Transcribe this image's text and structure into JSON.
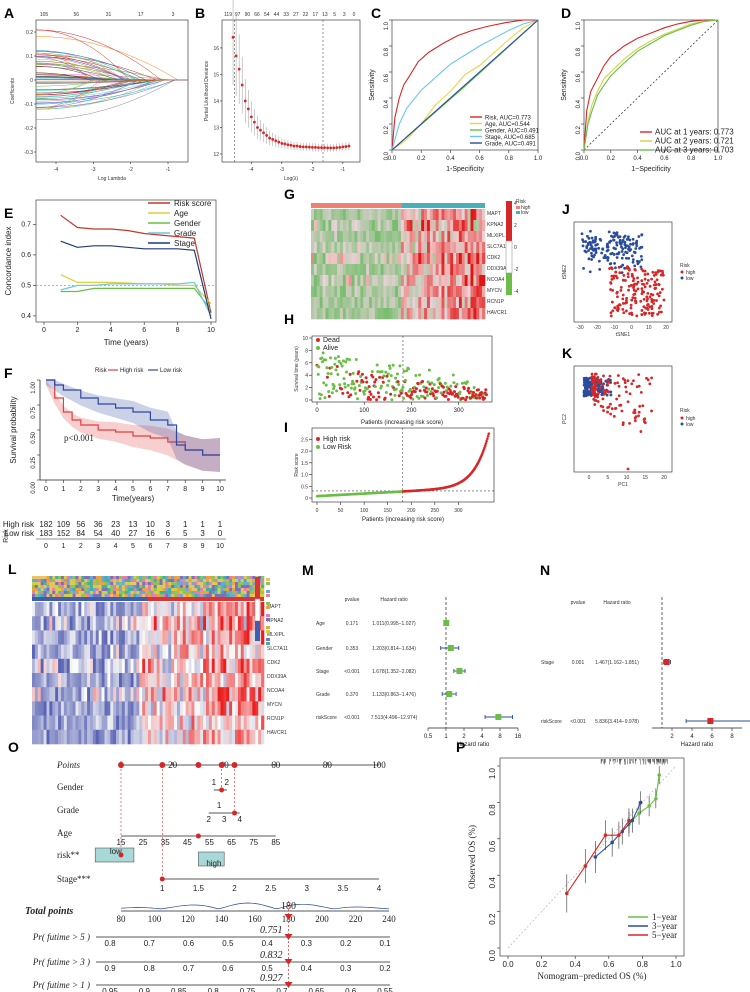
{
  "panel_labels": [
    "A",
    "B",
    "C",
    "D",
    "E",
    "F",
    "G",
    "H",
    "I",
    "J",
    "K",
    "L",
    "M",
    "N",
    "O",
    "P"
  ],
  "colors": {
    "red": "#d62728",
    "blue": "#2a4d9b",
    "green": "#6abe45",
    "yellow": "#e8e84a",
    "cyan": "#6cc6e6",
    "teal": "#1f7a8c",
    "pink": "#f0b8a8"
  },
  "chart_data": [
    {
      "panel": "A",
      "type": "line",
      "title": "",
      "top_ticks": [
        "105",
        "56",
        "31",
        "17",
        "3"
      ],
      "x_ticks": [
        "-4",
        "-3",
        "-2",
        "-1"
      ],
      "xlabel": "Log Lambda",
      "ylabel": "Coefficients",
      "y_ticks": [
        "0.2",
        "0.1",
        "0",
        "-0.1",
        "-0.2",
        "-0.3"
      ]
    },
    {
      "panel": "B",
      "type": "scatter",
      "top_ticks": [
        "119",
        "97",
        "90",
        "66",
        "54",
        "44",
        "33",
        "27",
        "22",
        "17",
        "13",
        "5",
        "3",
        "0"
      ],
      "x_ticks": [
        "-4",
        "-3",
        "-2",
        "-1"
      ],
      "xlabel": "Log(λ)",
      "ylabel": "Partial Likelihood Deviance",
      "y_ticks": [
        "12",
        "13",
        "14",
        "15",
        "16"
      ],
      "x": [
        -4.6,
        -4.5,
        -4.4,
        -4.3,
        -4.2,
        -4.1,
        -4.0,
        -3.9,
        -3.8,
        -3.7,
        -3.6,
        -3.5,
        -3.4,
        -3.3,
        -3.2,
        -3.1,
        -3.0,
        -2.9,
        -2.8,
        -2.7,
        -2.6,
        -2.5,
        -2.4,
        -2.3,
        -2.2,
        -2.1,
        -2.0,
        -1.9,
        -1.8,
        -1.7,
        -1.6,
        -1.5,
        -1.4,
        -1.3,
        -1.2,
        -1.1,
        -1.0,
        -0.9,
        -0.8
      ],
      "y": [
        16.4,
        15.7,
        15.2,
        14.6,
        14.0,
        13.7,
        13.4,
        13.2,
        13.0,
        12.9,
        12.8,
        12.7,
        12.6,
        12.55,
        12.5,
        12.45,
        12.4,
        12.38,
        12.35,
        12.33,
        12.3,
        12.3,
        12.28,
        12.27,
        12.27,
        12.26,
        12.25,
        12.25,
        12.24,
        12.24,
        12.24,
        12.23,
        12.23,
        12.23,
        12.24,
        12.25,
        12.27,
        12.28,
        12.3
      ],
      "lambda_min": -1.65
    },
    {
      "panel": "C",
      "type": "line",
      "xlabel": "1-Specificity",
      "ylabel": "Sensitivity",
      "x_ticks": [
        "0.0",
        "0.2",
        "0.4",
        "0.6",
        "0.8",
        "1.0"
      ],
      "y_ticks": [
        "0.0",
        "0.2",
        "0.4",
        "0.6",
        "0.8",
        "1.0"
      ],
      "series": [
        {
          "name": "Risk, AUC=0.773",
          "color": "#d62728",
          "x": [
            0,
            0.02,
            0.05,
            0.08,
            0.12,
            0.18,
            0.25,
            0.35,
            0.45,
            0.55,
            0.65,
            0.78,
            0.9,
            1
          ],
          "y": [
            0,
            0.25,
            0.4,
            0.5,
            0.57,
            0.68,
            0.75,
            0.82,
            0.88,
            0.92,
            0.95,
            0.98,
            1,
            1
          ]
        },
        {
          "name": "Age, AUC=0.544",
          "color": "#e8d44a",
          "x": [
            0,
            0.1,
            0.2,
            0.3,
            0.4,
            0.5,
            0.6,
            0.7,
            0.8,
            0.9,
            1
          ],
          "y": [
            0,
            0.08,
            0.2,
            0.35,
            0.45,
            0.58,
            0.65,
            0.75,
            0.85,
            0.94,
            1
          ]
        },
        {
          "name": "Gender, AUC=0.491",
          "color": "#6abe45",
          "x": [
            0,
            0.5,
            1
          ],
          "y": [
            0,
            0.49,
            1
          ]
        },
        {
          "name": "Stage, AUC=0.685",
          "color": "#6cc6e6",
          "x": [
            0,
            0.05,
            0.1,
            0.2,
            0.3,
            0.4,
            0.5,
            0.6,
            0.7,
            0.8,
            0.9,
            1
          ],
          "y": [
            0,
            0.2,
            0.32,
            0.46,
            0.56,
            0.66,
            0.73,
            0.8,
            0.86,
            0.92,
            0.97,
            1
          ]
        },
        {
          "name": "Grade, AUC=0.491",
          "color": "#2a4d9b",
          "x": [
            0,
            0.5,
            1
          ],
          "y": [
            0,
            0.5,
            1
          ]
        }
      ]
    },
    {
      "panel": "D",
      "type": "line",
      "xlabel": "1−Specificity",
      "ylabel": "Sensitivity",
      "x_ticks": [
        "0.0",
        "0.2",
        "0.4",
        "0.6",
        "0.8",
        "1.0"
      ],
      "y_ticks": [
        "0.0",
        "0.2",
        "0.4",
        "0.6",
        "0.8",
        "1.0"
      ],
      "series": [
        {
          "name": "AUC at 1 years: 0.773",
          "color": "#d62728",
          "x": [
            0,
            0.02,
            0.05,
            0.1,
            0.15,
            0.2,
            0.3,
            0.4,
            0.5,
            0.6,
            0.7,
            0.8,
            0.9,
            1
          ],
          "y": [
            0,
            0.3,
            0.45,
            0.55,
            0.65,
            0.72,
            0.8,
            0.86,
            0.9,
            0.94,
            0.97,
            0.99,
            1,
            1
          ]
        },
        {
          "name": "AUC at 2 years: 0.721",
          "color": "#c9d640",
          "x": [
            0,
            0.03,
            0.06,
            0.1,
            0.15,
            0.2,
            0.3,
            0.4,
            0.5,
            0.6,
            0.7,
            0.8,
            0.9,
            1
          ],
          "y": [
            0,
            0.22,
            0.35,
            0.45,
            0.55,
            0.6,
            0.7,
            0.78,
            0.84,
            0.89,
            0.93,
            0.97,
            0.99,
            1
          ]
        },
        {
          "name": "AUC at 3 years: 0.703",
          "color": "#6abe45",
          "x": [
            0,
            0.03,
            0.06,
            0.1,
            0.15,
            0.2,
            0.3,
            0.4,
            0.5,
            0.6,
            0.7,
            0.8,
            0.9,
            1
          ],
          "y": [
            0,
            0.2,
            0.3,
            0.42,
            0.5,
            0.57,
            0.67,
            0.76,
            0.82,
            0.88,
            0.92,
            0.96,
            0.99,
            1
          ]
        }
      ]
    },
    {
      "panel": "E",
      "type": "line",
      "xlabel": "Time (years)",
      "ylabel": "Concordance index",
      "x_ticks": [
        "0",
        "2",
        "4",
        "6",
        "8",
        "10"
      ],
      "y_ticks": [
        "0.4",
        "0.5",
        "0.6",
        "0.7"
      ],
      "x": [
        1,
        2,
        3,
        4,
        5,
        6,
        7,
        8,
        9,
        10
      ],
      "series": [
        {
          "name": "Risk score",
          "color": "#c0392b",
          "values": [
            0.73,
            0.69,
            0.685,
            0.685,
            0.68,
            0.67,
            0.665,
            0.66,
            0.655,
            0.41
          ]
        },
        {
          "name": "Age",
          "color": "#d9d23a",
          "values": [
            0.535,
            0.51,
            0.51,
            0.51,
            0.508,
            0.505,
            0.505,
            0.5,
            0.5,
            0.44
          ]
        },
        {
          "name": "Gender",
          "color": "#6abe45",
          "values": [
            0.48,
            0.48,
            0.49,
            0.49,
            0.49,
            0.49,
            0.49,
            0.49,
            0.49,
            0.42
          ]
        },
        {
          "name": "Grade",
          "color": "#6cc6e6",
          "values": [
            0.485,
            0.5,
            0.5,
            0.505,
            0.505,
            0.505,
            0.505,
            0.505,
            0.51,
            0.4
          ]
        },
        {
          "name": "Stage",
          "color": "#1f3a7a",
          "values": [
            0.645,
            0.625,
            0.63,
            0.63,
            0.625,
            0.62,
            0.62,
            0.62,
            0.615,
            0.39
          ]
        }
      ]
    },
    {
      "panel": "F",
      "type": "line",
      "xlabel": "Time(years)",
      "ylabel": "Survival probability",
      "legend_title": "Risk",
      "legend": [
        "High risk",
        "Low risk"
      ],
      "pvalue": "p<0.001",
      "x_ticks": [
        "0",
        "1",
        "2",
        "3",
        "4",
        "5",
        "6",
        "7",
        "8",
        "9",
        "10"
      ],
      "y_ticks": [
        "0.00",
        "0.25",
        "0.50",
        "0.75",
        "1.00"
      ],
      "series": [
        {
          "name": "High risk",
          "color": "#e04040",
          "x": [
            0,
            0.5,
            1,
            1.5,
            2,
            3,
            4,
            5,
            6,
            7,
            8,
            9,
            10
          ],
          "y": [
            1,
            0.82,
            0.68,
            0.6,
            0.55,
            0.5,
            0.48,
            0.44,
            0.42,
            0.38,
            0.3,
            0.25,
            0.25
          ]
        },
        {
          "name": "Low risk",
          "color": "#3048a0",
          "x": [
            0,
            0.5,
            1,
            2,
            3,
            4,
            5,
            6,
            7,
            7.5,
            8,
            9,
            10
          ],
          "y": [
            1,
            0.95,
            0.9,
            0.82,
            0.76,
            0.72,
            0.68,
            0.6,
            0.55,
            0.35,
            0.3,
            0.25,
            0.25
          ]
        }
      ],
      "risk_table_label": "Risk",
      "risk_table": [
        {
          "label": "High risk",
          "color": "#e04040",
          "values": [
            "182",
            "109",
            "56",
            "36",
            "23",
            "13",
            "10",
            "3",
            "1",
            "1",
            "1"
          ]
        },
        {
          "label": "Low risk",
          "color": "#3048a0",
          "values": [
            "183",
            "152",
            "84",
            "54",
            "40",
            "27",
            "16",
            "6",
            "5",
            "3",
            "0"
          ]
        }
      ]
    },
    {
      "panel": "G",
      "type": "heatmap",
      "genes": [
        "MAPT",
        "KPNA2",
        "MLXIPL",
        "SLC7A11",
        "CDK2",
        "DDX39A",
        "NCOA4",
        "MYCN",
        "RCN1P",
        "HAVCR1"
      ],
      "legend_title": "Risk",
      "legend": [
        "high",
        "low"
      ],
      "scale": [
        "4",
        "2",
        "0",
        "-2",
        "-4"
      ]
    },
    {
      "panel": "H",
      "type": "scatter",
      "xlabel": "Patients (increasing risk score)",
      "ylabel": "Survival time (years)",
      "legend": [
        "Dead",
        "Alive"
      ],
      "x_ticks": [
        "0",
        "100",
        "200",
        "300"
      ],
      "y_ticks": [
        "0",
        "2",
        "4",
        "6",
        "8",
        "10"
      ]
    },
    {
      "panel": "I",
      "type": "scatter",
      "xlabel": "Patients (increasing risk score)",
      "ylabel": "Risk score",
      "legend": [
        "High risk",
        "Low Risk"
      ],
      "x_ticks": [
        "0",
        "50",
        "100",
        "150",
        "200",
        "250",
        "300"
      ],
      "y_ticks": [
        "0",
        "0.5",
        "1.0",
        "1.5",
        "2.0",
        "2.5"
      ]
    },
    {
      "panel": "J",
      "type": "scatter",
      "xlabel": "tSNE1",
      "ylabel": "tSNE2",
      "legend_title": "Risk",
      "legend": [
        "high",
        "low"
      ]
    },
    {
      "panel": "K",
      "type": "scatter",
      "xlabel": "PC1",
      "ylabel": "PC2",
      "legend_title": "Risk",
      "legend": [
        "high",
        "low"
      ]
    },
    {
      "panel": "L",
      "type": "heatmap",
      "genes": [
        "MAPT",
        "KPNA2",
        "MLXIPL",
        "SLC7A11",
        "CDK2",
        "DDX39A",
        "NCOA4",
        "MYCN",
        "RCN1P",
        "HAVCR1"
      ]
    },
    {
      "panel": "M",
      "type": "forest",
      "header": [
        "pvalue",
        "Hazard ratio"
      ],
      "xlabel": "Hazard ratio",
      "x_ticks": [
        "0.5",
        "1",
        "2",
        "4",
        "8",
        "16"
      ],
      "rows": [
        {
          "name": "Age",
          "p": "0.171",
          "hr_text": "1.011(0.995−1.027)",
          "hr": 1.011,
          "lo": 0.995,
          "hi": 1.027
        },
        {
          "name": "Gender",
          "p": "0.353",
          "hr_text": "1.203(0.814−1.634)",
          "hr": 1.203,
          "lo": 0.814,
          "hi": 1.634
        },
        {
          "name": "Stage",
          "p": "<0.001",
          "hr_text": "1.678(1.352−2.082)",
          "hr": 1.678,
          "lo": 1.352,
          "hi": 2.082
        },
        {
          "name": "Grade",
          "p": "0.370",
          "hr_text": "1.133(0.863−1.476)",
          "hr": 1.133,
          "lo": 0.863,
          "hi": 1.476
        },
        {
          "name": "riskScore",
          "p": "<0.001",
          "hr_text": "7.513(4.496−12.974)",
          "hr": 7.513,
          "lo": 4.496,
          "hi": 12.974
        }
      ]
    },
    {
      "panel": "N",
      "type": "forest",
      "header": [
        "pvalue",
        "Hazard ratio"
      ],
      "xlabel": "Hazard ratio",
      "x_ticks": [
        "2",
        "4",
        "6",
        "8"
      ],
      "rows": [
        {
          "name": "Stage",
          "p": "0.001",
          "hr_text": "1.467(1.162−1.851)",
          "hr": 1.467,
          "lo": 1.162,
          "hi": 1.851
        },
        {
          "name": "riskScore",
          "p": "<0.001",
          "hr_text": "5.836(3.414−9.978)",
          "hr": 5.836,
          "lo": 3.414,
          "hi": 9.978
        }
      ]
    },
    {
      "panel": "O",
      "type": "nomogram",
      "rows": [
        {
          "name": "Points",
          "ticks": [
            "0",
            "20",
            "40",
            "60",
            "80",
            "100"
          ]
        },
        {
          "name": "Gender",
          "ticks": [
            "1",
            "2"
          ]
        },
        {
          "name": "Grade",
          "ticks": [
            "2",
            "3",
            "4",
            "1"
          ]
        },
        {
          "name": "Age",
          "ticks": [
            "15",
            "25",
            "35",
            "45",
            "55",
            "65",
            "75",
            "85"
          ]
        },
        {
          "name": "risk**",
          "ticks": [
            "low",
            "high"
          ]
        },
        {
          "name": "Stage***",
          "ticks": [
            "1",
            "1.5",
            "2",
            "2.5",
            "3",
            "3.5",
            "4"
          ]
        },
        {
          "name": "Total points",
          "ticks": [
            "80",
            "100",
            "120",
            "140",
            "160",
            "180",
            "200",
            "220",
            "240"
          ]
        },
        {
          "name": "Pr( futime > 5 )",
          "ticks": [
            "0.8",
            "0.7",
            "0.6",
            "0.5",
            "0.4",
            "0.3",
            "0.2",
            "0.1"
          ]
        },
        {
          "name": "Pr( futime > 3 )",
          "ticks": [
            "0.9",
            "0.8",
            "0.7",
            "0.6",
            "0.5",
            "0.4",
            "0.3",
            "0.2"
          ]
        },
        {
          "name": "Pr( futime > 1 )",
          "ticks": [
            "0.95",
            "0.9",
            "0.85",
            "0.8",
            "0.75",
            "0.7",
            "0.65",
            "0.6",
            "0.55"
          ]
        }
      ],
      "total_score": "180",
      "probabilities": [
        "0.751",
        "0.832",
        "0.927"
      ]
    },
    {
      "panel": "P",
      "type": "line",
      "xlabel": "Nomogram−predicted OS (%)",
      "ylabel": "Observed OS (%)",
      "x_ticks": [
        "0.0",
        "0.2",
        "0.4",
        "0.6",
        "0.8",
        "1.0"
      ],
      "y_ticks": [
        "0.0",
        "0.2",
        "0.4",
        "0.6",
        "0.8",
        "1.0"
      ],
      "series": [
        {
          "name": "1−year",
          "color": "#6abe45",
          "x": [
            0.72,
            0.78,
            0.84,
            0.88,
            0.9
          ],
          "y": [
            0.68,
            0.74,
            0.78,
            0.82,
            0.95
          ]
        },
        {
          "name": "3−year",
          "color": "#2a4d9b",
          "x": [
            0.52,
            0.62,
            0.68,
            0.74,
            0.79
          ],
          "y": [
            0.5,
            0.58,
            0.64,
            0.7,
            0.8
          ]
        },
        {
          "name": "5−year",
          "color": "#d62728",
          "x": [
            0.35,
            0.46,
            0.58,
            0.66,
            0.72
          ],
          "y": [
            0.3,
            0.45,
            0.62,
            0.62,
            0.7
          ]
        }
      ]
    }
  ]
}
